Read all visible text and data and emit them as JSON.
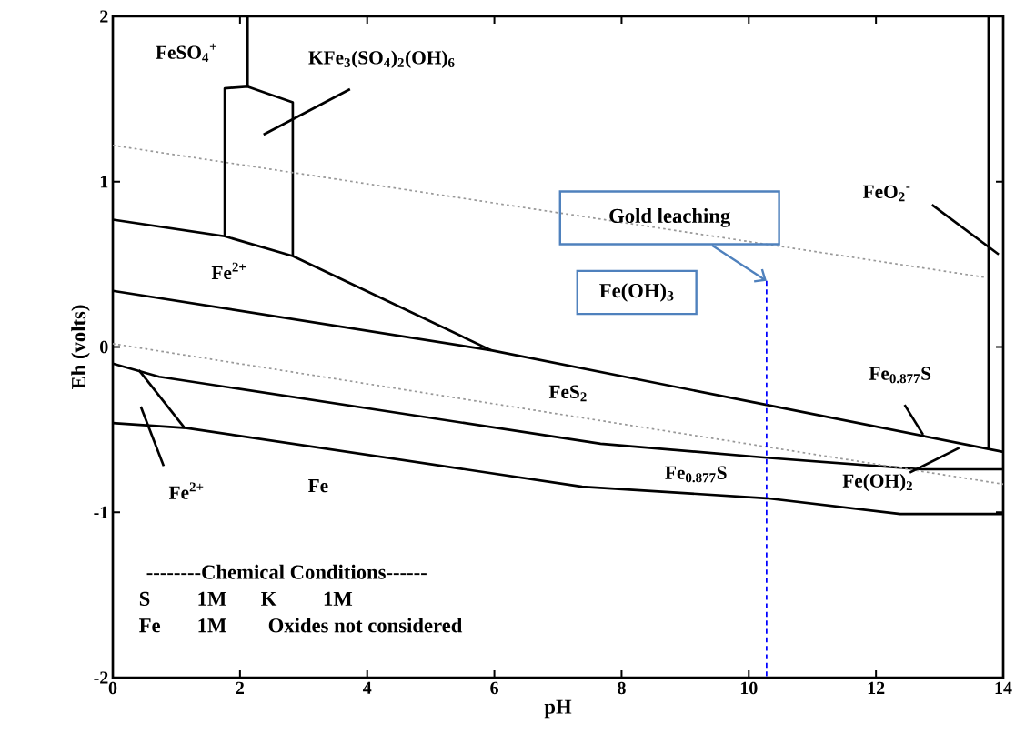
{
  "chart_data": {
    "type": "line",
    "xlabel": "pH",
    "ylabel": "Eh (volts)",
    "xlim": [
      0,
      14
    ],
    "ylim": [
      -2,
      2
    ],
    "xticks": [
      0,
      2,
      4,
      6,
      8,
      10,
      12,
      14
    ],
    "yticks": [
      -2,
      -1,
      0,
      1,
      2
    ],
    "marker": "none",
    "series": [
      {
        "color": "#000000",
        "x": [
          0,
          1.76,
          2.83,
          5.95
        ],
        "values": [
          0.77,
          0.67,
          0.55,
          -0.02
        ]
      },
      {
        "color": "#000000",
        "x": [
          1.76,
          1.76,
          2.12,
          2.83,
          2.83
        ],
        "values": [
          0.67,
          1.565,
          1.575,
          1.48,
          0.55
        ]
      },
      {
        "color": "#000000",
        "x": [
          2.12,
          2.12
        ],
        "values": [
          1.575,
          2
        ]
      },
      {
        "color": "#000000",
        "x": [
          0,
          5.95,
          10.28,
          14
        ],
        "values": [
          0.34,
          -0.02,
          -0.35,
          -0.635
        ]
      },
      {
        "color": "#000000",
        "x": [
          0,
          0.73,
          7.67,
          10.28,
          12.71,
          14
        ],
        "values": [
          -0.1,
          -0.18,
          -0.585,
          -0.67,
          -0.74,
          -0.74
        ]
      },
      {
        "color": "#000000",
        "x": [
          0,
          1.16,
          7.38,
          10.28,
          12.38,
          14
        ],
        "values": [
          -0.46,
          -0.49,
          -0.845,
          -0.915,
          -1.01,
          -1.01
        ]
      },
      {
        "color": "#000000",
        "x": [
          0.41,
          1.13
        ],
        "values": [
          -0.14,
          -0.49
        ]
      },
      {
        "color": "#000000",
        "x": [
          13.77,
          13.77
        ],
        "values": [
          2,
          -0.62
        ]
      },
      {
        "color": "#999999",
        "line_style": "dotted",
        "x": [
          0,
          13.74
        ],
        "values": [
          1.22,
          0.42
        ]
      },
      {
        "color": "#999999",
        "line_style": "dotted",
        "x": [
          0,
          14
        ],
        "values": [
          0.02,
          -0.83
        ]
      },
      {
        "color": "#0000ff",
        "line_style": "dashed",
        "x": [
          10.28,
          10.28
        ],
        "values": [
          0.4,
          -2
        ]
      },
      {
        "color": "#000000",
        "x": [
          2.37,
          3.73
        ],
        "values": [
          1.285,
          1.56
        ]
      },
      {
        "color": "#000000",
        "x": [
          12.88,
          13.93
        ],
        "values": [
          0.86,
          0.56
        ]
      },
      {
        "color": "#000000",
        "x": [
          12.45,
          12.74
        ],
        "values": [
          -0.35,
          -0.53
        ]
      },
      {
        "color": "#000000",
        "x": [
          12.53,
          13.31
        ],
        "values": [
          -0.76,
          -0.61
        ]
      },
      {
        "color": "#000000",
        "x": [
          0.44,
          0.8
        ],
        "values": [
          -0.36,
          -0.72
        ]
      }
    ],
    "annotations": [
      {
        "text": "Gold leaching",
        "x": 10.28,
        "y": 0.4
      },
      "Fe(OH)$_{3}$",
      "FeSO$_{4}$$^{+}$",
      "KFe$_{3}$(SO$_{4}$)$_{2}$(OH)$_{6}$",
      "Fe$^{2+}$",
      "FeO$_{2}$$^{-}$",
      "FeS$_{2}$",
      "Fe$_{0.877}$S",
      "Fe$_{0.877}$S",
      "Fe(OH)$_{2}$",
      "Fe$^{2+}$",
      "Fe",
      "--------Chemical Conditions------",
      "S",
      "1M",
      "K",
      "1M",
      "Fe",
      "1M",
      "Oxides not considered"
    ]
  }
}
